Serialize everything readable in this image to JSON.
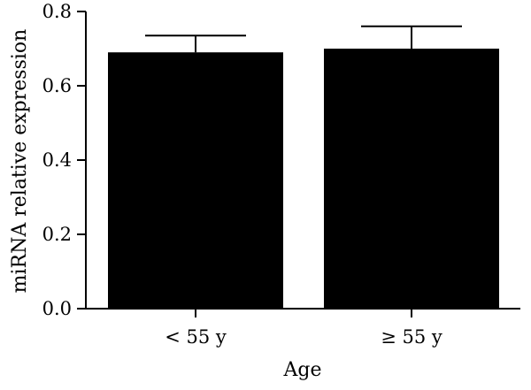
{
  "chart_data": {
    "type": "bar",
    "title": "",
    "xlabel": "Age",
    "ylabel": "miRNA relative expression",
    "categories": [
      "< 55 y",
      "≥ 55 y"
    ],
    "values": [
      0.69,
      0.7
    ],
    "error_upper": [
      0.735,
      0.76
    ],
    "ylim": [
      0,
      0.8
    ],
    "yticks": [
      "0.0",
      "0.2",
      "0.4",
      "0.6",
      "0.8"
    ],
    "grid": false,
    "bar_color": "#000000"
  }
}
